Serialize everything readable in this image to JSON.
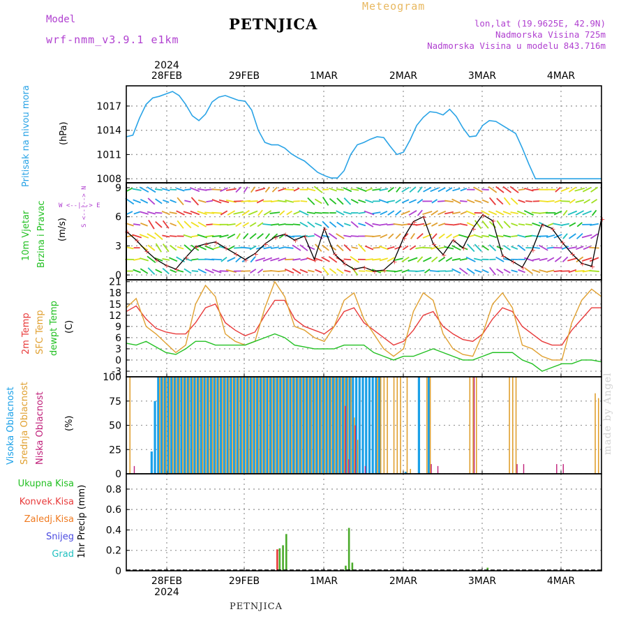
{
  "header": {
    "title": "PETNJICA",
    "meteogram": "Meteogram",
    "model_label": "Model",
    "model_name": "wrf-nmm_v3.9.1 e1km",
    "lonlat": "lon,lat (19.9625E, 42.9N)",
    "altitude": "Nadmorska Visina 725m",
    "altitude_model": "Nadmorska Visina u modelu 843.716m",
    "footer": "PETNJICA",
    "made_by": "made by Angel"
  },
  "time_axis": {
    "year": "2024",
    "labels": [
      "28FEB",
      "29FEB",
      "1MAR",
      "2MAR",
      "3MAR",
      "4MAR"
    ]
  },
  "panel_labels": {
    "pressure": {
      "label": "Pritisak na nivou mora",
      "unit": "(hPa)"
    },
    "wind": {
      "label1": "10m Vjetar",
      "label2": "Brzina i Pravac",
      "unit": "(m/s)",
      "compass": "W <--|--> E",
      "compass_v": "S <--|--> N"
    },
    "temp": {
      "label1": "2m Temp",
      "label2": "SFC Temp",
      "label3": "dewpt Temp",
      "unit": "(C)"
    },
    "cloud": {
      "label1": "Visoka Oblacnost",
      "label2": "Srednja Oblacnost",
      "label3": "Niska Oblacnost",
      "unit": "(%)"
    },
    "precip": {
      "items": [
        "Ukupna Kisa",
        "Konvek.Kisa",
        "Zaledj.Kisa",
        "Snijeg",
        "Grad"
      ],
      "unit": "1hr Precip (mm)"
    }
  },
  "colors": {
    "pressure": "#29a3e6",
    "temp2m": "#e83a3a",
    "sfc": "#e0a030",
    "dewpt": "#22c022",
    "high_cloud": "#1aa0e8",
    "mid_cloud": "#e0a030",
    "low_cloud": "#c0207a",
    "total_rain": "#4aaa2a",
    "conv_rain": "#e83a3a",
    "frz_rain": "#f07a20",
    "snow": "#4a4ae0",
    "hail": "#20c0c0",
    "model": "#b040d0"
  },
  "chart_data": [
    {
      "type": "line",
      "title": "",
      "ylabel": "Pritisak na nivou mora (hPa)",
      "yticks": [
        1008,
        1011,
        1014,
        1017
      ],
      "ylim": [
        1007.5,
        1019.5
      ],
      "x_hours": [
        0,
        2,
        4,
        6,
        8,
        10,
        12,
        14,
        16,
        18,
        20,
        22,
        24,
        26,
        28,
        30,
        32,
        34,
        36,
        38,
        40,
        42,
        44,
        46,
        48,
        50,
        52,
        54,
        56,
        58,
        60,
        62,
        64,
        66,
        68,
        70,
        72,
        74,
        76,
        78,
        80,
        82,
        84,
        86,
        88,
        90,
        92,
        94,
        96,
        98,
        100,
        102,
        104,
        106,
        108,
        110,
        112,
        114,
        116,
        118,
        120,
        122,
        124,
        126,
        128,
        130,
        132,
        134,
        136,
        138,
        140,
        142,
        144
      ],
      "values": [
        1013.2,
        1013.4,
        1015.5,
        1017.2,
        1018.0,
        1018.2,
        1018.5,
        1018.8,
        1018.3,
        1017.2,
        1015.8,
        1015.2,
        1016.0,
        1017.5,
        1018.1,
        1018.3,
        1018.0,
        1017.7,
        1017.6,
        1016.5,
        1014.0,
        1012.5,
        1012.2,
        1012.2,
        1011.8,
        1011.1,
        1010.6,
        1010.2,
        1009.5,
        1008.8,
        1008.4,
        1008.1,
        1008.1,
        1009.0,
        1011.0,
        1012.2,
        1012.5,
        1012.9,
        1013.2,
        1013.1,
        1012.0,
        1011.0,
        1011.3,
        1012.8,
        1014.6,
        1015.6,
        1016.3,
        1016.2,
        1015.9,
        1016.6,
        1015.7,
        1014.3,
        1013.2,
        1013.3,
        1014.6,
        1015.2,
        1015.1,
        1014.6,
        1014.1,
        1013.6,
        1011.8,
        1009.8,
        1008.0,
        1008.0,
        1008.0,
        1008.0,
        1008.0,
        1008.0,
        1008.0,
        1008.0,
        1008.0,
        1008.0,
        1008.0
      ]
    },
    {
      "type": "line",
      "title": "",
      "ylabel": "10m Vjetar Brzina i Pravac (m/s)",
      "yticks": [
        0,
        3,
        6,
        9
      ],
      "ylim": [
        -0.5,
        9.5
      ],
      "x_hours": [
        0,
        3,
        6,
        9,
        12,
        15,
        18,
        21,
        24,
        27,
        30,
        33,
        36,
        39,
        42,
        45,
        48,
        51,
        54,
        57,
        60,
        63,
        66,
        69,
        72,
        75,
        78,
        81,
        84,
        87,
        90,
        93,
        96,
        99,
        102,
        105,
        108,
        111,
        114,
        117,
        120,
        123,
        126,
        129,
        132,
        135,
        138,
        141,
        144
      ],
      "values": [
        4.5,
        3.6,
        2.5,
        1.6,
        1.0,
        0.6,
        1.8,
        2.9,
        3.2,
        3.4,
        2.8,
        2.2,
        1.6,
        2.2,
        3.2,
        3.9,
        4.2,
        3.6,
        4.0,
        1.6,
        4.8,
        2.2,
        1.2,
        0.6,
        0.8,
        0.4,
        0.5,
        1.4,
        3.8,
        5.5,
        6.0,
        3.2,
        2.1,
        3.6,
        2.8,
        4.8,
        6.2,
        5.6,
        2.0,
        1.4,
        0.8,
        2.6,
        5.2,
        4.8,
        3.4,
        2.2,
        1.2,
        0.9,
        5.8
      ]
    },
    {
      "type": "line",
      "title": "",
      "ylabel": "Temp (C)",
      "yticks": [
        -3,
        0,
        3,
        6,
        9,
        12,
        15,
        18,
        21
      ],
      "ylim": [
        -4.5,
        21.5
      ],
      "x_hours": [
        0,
        3,
        6,
        9,
        12,
        15,
        18,
        21,
        24,
        27,
        30,
        33,
        36,
        39,
        42,
        45,
        48,
        51,
        54,
        57,
        60,
        63,
        66,
        69,
        72,
        75,
        78,
        81,
        84,
        87,
        90,
        93,
        96,
        99,
        102,
        105,
        108,
        111,
        114,
        117,
        120,
        123,
        126,
        129,
        132,
        135,
        138,
        141,
        144
      ],
      "series": [
        {
          "name": "2m Temp",
          "values": [
            13,
            14.5,
            11,
            8.5,
            7.5,
            7,
            7,
            10,
            14,
            15,
            10,
            8,
            6.5,
            7.5,
            12,
            16,
            16,
            11,
            9,
            8,
            7,
            9,
            13,
            14,
            10,
            8,
            6,
            4,
            5,
            8,
            12,
            13,
            9,
            7,
            5.5,
            5,
            7,
            11,
            14,
            13,
            9,
            7,
            5,
            4,
            4,
            8,
            11,
            14,
            14
          ]
        },
        {
          "name": "SFC Temp",
          "values": [
            14,
            16.5,
            9,
            7,
            4.5,
            2,
            4,
            15,
            20,
            17,
            7,
            5,
            4,
            5,
            14,
            21,
            17,
            9,
            8,
            6,
            5,
            9,
            16,
            18,
            11,
            7,
            3,
            1,
            3,
            13,
            18,
            16,
            7,
            3,
            1.5,
            1,
            7,
            15,
            18,
            14,
            4,
            3,
            1,
            0,
            0,
            10,
            16,
            19,
            17
          ]
        },
        {
          "name": "dewpt Temp",
          "values": [
            4.5,
            4,
            5,
            3.5,
            2,
            1.5,
            3,
            5,
            5,
            4,
            4,
            4,
            4,
            5,
            6,
            7,
            6,
            4,
            3.5,
            3,
            3,
            3,
            4,
            4,
            4,
            2,
            1,
            0,
            1,
            1,
            2,
            3,
            2,
            1,
            0,
            0,
            1,
            2,
            2,
            2,
            0,
            -1,
            -3,
            -2,
            -1,
            -1,
            0,
            0,
            -0.5
          ]
        }
      ]
    },
    {
      "type": "bar",
      "title": "",
      "ylabel": "Oblacnost (%)",
      "yticks": [
        0,
        25,
        50,
        75,
        100
      ],
      "ylim": [
        0,
        100
      ],
      "x_hours": [
        1,
        2,
        3,
        4,
        5,
        6,
        7,
        8,
        9,
        10,
        11,
        12,
        13,
        14,
        15,
        16,
        17,
        18,
        19,
        20,
        21,
        22,
        23,
        24,
        25,
        26,
        27,
        28,
        29,
        30,
        31,
        32,
        33,
        34,
        35,
        36,
        37,
        38,
        39,
        40,
        41,
        42,
        43,
        44,
        45,
        46,
        47,
        48,
        49,
        50,
        51,
        52,
        53,
        54,
        55,
        56,
        57,
        58,
        59,
        60,
        61,
        62,
        63,
        64,
        65,
        66,
        67,
        68,
        69,
        70,
        71,
        72,
        73,
        74,
        75,
        76,
        77,
        78,
        79,
        80,
        81,
        82,
        83,
        84,
        85,
        86,
        87,
        88,
        89,
        90,
        91,
        92,
        93,
        94,
        95,
        96,
        97,
        98,
        99,
        100,
        101,
        102,
        103,
        104,
        105,
        106,
        107,
        108,
        109,
        110,
        111,
        112,
        113,
        114,
        115,
        116,
        117,
        118,
        119,
        120,
        121,
        122,
        123,
        124,
        125,
        126,
        127,
        128,
        129,
        130,
        131,
        132,
        133,
        134,
        135,
        136,
        137,
        138,
        139,
        140,
        141,
        142,
        143,
        144
      ],
      "series": [
        {
          "name": "Visoka Oblacnost",
          "values": [
            0,
            0,
            0,
            0,
            0,
            0,
            0,
            23,
            75,
            100,
            100,
            100,
            100,
            100,
            100,
            100,
            100,
            100,
            100,
            100,
            100,
            100,
            100,
            100,
            100,
            100,
            100,
            100,
            100,
            100,
            100,
            100,
            100,
            100,
            100,
            100,
            100,
            100,
            100,
            100,
            100,
            100,
            100,
            100,
            100,
            100,
            100,
            100,
            100,
            100,
            100,
            100,
            100,
            100,
            100,
            100,
            100,
            100,
            100,
            100,
            100,
            100,
            100,
            100,
            100,
            100,
            100,
            100,
            100,
            100,
            100,
            100,
            100,
            100,
            100,
            100,
            100,
            0,
            0,
            0,
            0,
            0,
            0,
            0,
            2,
            0,
            0,
            0,
            100,
            0,
            0,
            100,
            0,
            0,
            0,
            0,
            0,
            0,
            0,
            0,
            0,
            0,
            0,
            0,
            0,
            0,
            0,
            0,
            0,
            0,
            0,
            0,
            0,
            0,
            0,
            0,
            0,
            0,
            0,
            0,
            0,
            0,
            0,
            0,
            0,
            0,
            0,
            0,
            0,
            0,
            0,
            0,
            0,
            0,
            0,
            0,
            0,
            0,
            0,
            0,
            0,
            0,
            0,
            0
          ]
        },
        {
          "name": "Srednja Oblacnost",
          "values": [
            100,
            0,
            0,
            0,
            0,
            0,
            0,
            0,
            0,
            100,
            100,
            100,
            100,
            100,
            100,
            100,
            100,
            100,
            100,
            100,
            100,
            100,
            100,
            100,
            100,
            100,
            100,
            100,
            100,
            100,
            100,
            100,
            100,
            100,
            100,
            100,
            100,
            100,
            100,
            100,
            100,
            100,
            100,
            100,
            100,
            100,
            100,
            100,
            100,
            100,
            100,
            100,
            100,
            100,
            100,
            100,
            100,
            100,
            100,
            100,
            100,
            100,
            100,
            100,
            100,
            100,
            100,
            100,
            58,
            35,
            0,
            0,
            0,
            0,
            0,
            100,
            100,
            100,
            100,
            0,
            100,
            100,
            100,
            0,
            100,
            5,
            0,
            0,
            0,
            0,
            100,
            100,
            0,
            0,
            0,
            0,
            0,
            0,
            0,
            0,
            0,
            0,
            0,
            100,
            100,
            100,
            0,
            0,
            0,
            0,
            0,
            0,
            0,
            0,
            0,
            100,
            100,
            100,
            0,
            0,
            0,
            0,
            0,
            0,
            0,
            0,
            0,
            0,
            0,
            0,
            0,
            0,
            0,
            0,
            0,
            0,
            0,
            0,
            0,
            0,
            0,
            83,
            78,
            0
          ]
        },
        {
          "name": "Niska Oblacnost",
          "values": [
            0,
            8,
            0,
            0,
            0,
            0,
            0,
            0,
            0,
            0,
            0,
            0,
            0,
            0,
            0,
            0,
            0,
            0,
            0,
            0,
            0,
            0,
            0,
            0,
            0,
            0,
            0,
            0,
            0,
            0,
            0,
            0,
            0,
            0,
            0,
            0,
            0,
            0,
            0,
            0,
            0,
            0,
            0,
            0,
            0,
            0,
            0,
            0,
            0,
            0,
            0,
            0,
            0,
            0,
            0,
            0,
            0,
            0,
            0,
            0,
            0,
            0,
            0,
            0,
            0,
            70,
            15,
            0,
            50,
            0,
            0,
            8,
            0,
            0,
            0,
            0,
            0,
            0,
            0,
            0,
            0,
            0,
            0,
            0,
            0,
            0,
            0,
            0,
            0,
            0,
            0,
            10,
            0,
            8,
            0,
            0,
            0,
            0,
            0,
            0,
            0,
            0,
            0,
            0,
            100,
            0,
            0,
            0,
            0,
            0,
            0,
            0,
            0,
            0,
            0,
            0,
            0,
            10,
            0,
            10,
            0,
            0,
            0,
            0,
            0,
            0,
            0,
            0,
            0,
            10,
            0,
            10,
            0,
            0,
            0,
            0,
            0,
            0,
            0,
            0,
            0,
            0,
            0,
            0
          ]
        }
      ]
    },
    {
      "type": "bar",
      "title": "",
      "ylabel": "1hr Precip (mm)",
      "yticks": [
        0,
        0.2,
        0.4,
        0.6,
        0.8
      ],
      "ylim": [
        0,
        0.95
      ],
      "x_hours": [
        46,
        47,
        48,
        66,
        67,
        68,
        109
      ],
      "series": [
        {
          "name": "Ukupna Kisa",
          "values": [
            0.22,
            0.25,
            0.36,
            0.05,
            0.42,
            0.08,
            0.03
          ]
        },
        {
          "name": "Konvek.Kisa",
          "values": [
            0.21,
            0.0,
            0.0,
            0.0,
            0.0,
            0.0,
            0.0
          ]
        }
      ]
    }
  ]
}
